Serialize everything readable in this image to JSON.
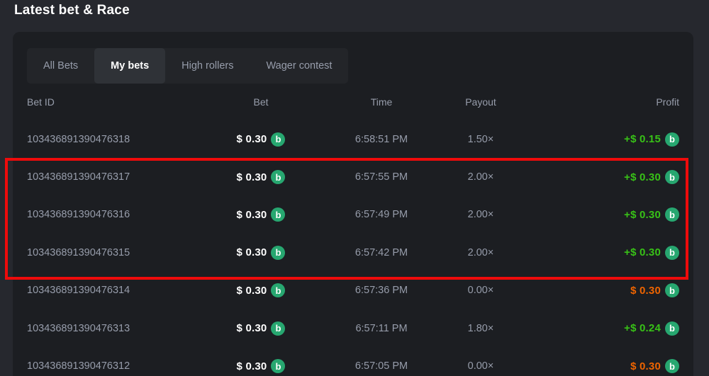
{
  "title": "Latest bet & Race",
  "tabs": [
    {
      "label": "All Bets",
      "active": false
    },
    {
      "label": "My bets",
      "active": true
    },
    {
      "label": "High rollers",
      "active": false
    },
    {
      "label": "Wager contest",
      "active": false
    }
  ],
  "table": {
    "headers": {
      "bet_id": "Bet ID",
      "bet": "Bet",
      "time": "Time",
      "payout": "Payout",
      "profit": "Profit"
    },
    "rows": [
      {
        "bet_id": "103436891390476318",
        "bet": "$ 0.30",
        "time": "6:58:51 PM",
        "payout": "1.50×",
        "profit": "+$ 0.15",
        "profit_state": "win"
      },
      {
        "bet_id": "103436891390476317",
        "bet": "$ 0.30",
        "time": "6:57:55 PM",
        "payout": "2.00×",
        "profit": "+$ 0.30",
        "profit_state": "win"
      },
      {
        "bet_id": "103436891390476316",
        "bet": "$ 0.30",
        "time": "6:57:49 PM",
        "payout": "2.00×",
        "profit": "+$ 0.30",
        "profit_state": "win"
      },
      {
        "bet_id": "103436891390476315",
        "bet": "$ 0.30",
        "time": "6:57:42 PM",
        "payout": "2.00×",
        "profit": "+$ 0.30",
        "profit_state": "win"
      },
      {
        "bet_id": "103436891390476314",
        "bet": "$ 0.30",
        "time": "6:57:36 PM",
        "payout": "0.00×",
        "profit": "$ 0.30",
        "profit_state": "loss"
      },
      {
        "bet_id": "103436891390476313",
        "bet": "$ 0.30",
        "time": "6:57:11 PM",
        "payout": "1.80×",
        "profit": "+$ 0.24",
        "profit_state": "win"
      },
      {
        "bet_id": "103436891390476312",
        "bet": "$ 0.30",
        "time": "6:57:05 PM",
        "payout": "0.00×",
        "profit": "$ 0.30",
        "profit_state": "loss"
      }
    ]
  },
  "coin_icon_glyph": "b",
  "annotation": {
    "type": "highlight-rectangle",
    "highlighted_bet_ids": [
      "103436891390476317",
      "103436891390476316",
      "103436891390476315"
    ]
  },
  "colors": {
    "page_bg": "#26282e",
    "panel_bg": "#1c1e22",
    "tabs_bg": "#232529",
    "tab_active_bg": "#2f3237",
    "text_muted": "#979dab",
    "text_white": "#ffffff",
    "win_green": "#38c217",
    "loss_orange": "#ee6400",
    "coin_green": "#27a770",
    "annotation_red": "#ee0b0b"
  }
}
